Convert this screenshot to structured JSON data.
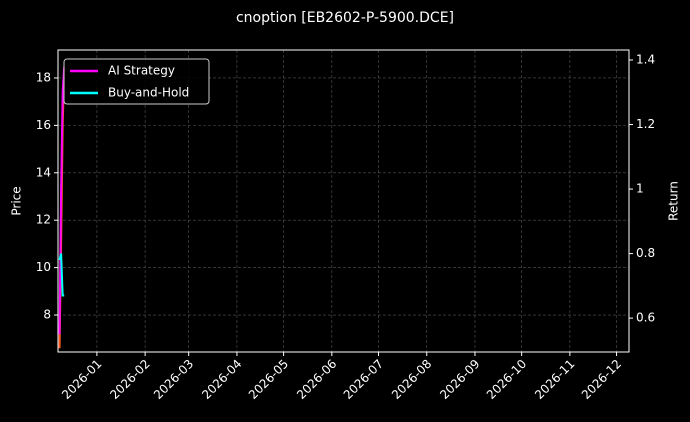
{
  "chart_data": {
    "type": "line",
    "title": "cnoption [EB2602-P-5900.DCE]",
    "y_label": "Price",
    "y2_label": "Return",
    "x": [
      "2025-12-08",
      "2025-12-09",
      "2025-12-10",
      "2025-12-11"
    ],
    "series": [
      {
        "color": "#ff5a1f",
        "values": [
          6.6,
          11,
          16,
          18.4
        ]
      },
      {
        "name": "AI Strategy",
        "color": "#ff00ff",
        "axis": "y2",
        "values": [
          0.55,
          1.0,
          1.3,
          1.38
        ]
      },
      {
        "name": "Buy-and-Hold",
        "color": "#00ffff",
        "axis": "y2",
        "values": [
          0.78,
          0.8,
          0.67,
          0.67
        ]
      }
    ],
    "xlim": [
      "2025-12-07",
      "2026-12-09"
    ],
    "xticks": [
      {
        "value": "2026-01-01",
        "label": "2026-01"
      },
      {
        "value": "2026-02-01",
        "label": "2026-02"
      },
      {
        "value": "2026-03-01",
        "label": "2026-03"
      },
      {
        "value": "2026-04-01",
        "label": "2026-04"
      },
      {
        "value": "2026-05-01",
        "label": "2026-05"
      },
      {
        "value": "2026-06-01",
        "label": "2026-06"
      },
      {
        "value": "2026-07-01",
        "label": "2026-07"
      },
      {
        "value": "2026-08-01",
        "label": "2026-08"
      },
      {
        "value": "2026-09-01",
        "label": "2026-09"
      },
      {
        "value": "2026-10-01",
        "label": "2026-10"
      },
      {
        "value": "2026-11-01",
        "label": "2026-11"
      },
      {
        "value": "2026-12-01",
        "label": "2026-12"
      }
    ],
    "ylim": [
      6.44,
      19.18
    ],
    "yticks": [
      8,
      10,
      12,
      14,
      16,
      18
    ],
    "y2lim": [
      0.495,
      1.431
    ],
    "y2ticks": [
      0.6,
      0.8,
      1.0,
      1.2,
      1.4
    ],
    "grid": true,
    "legend": "upper left"
  }
}
